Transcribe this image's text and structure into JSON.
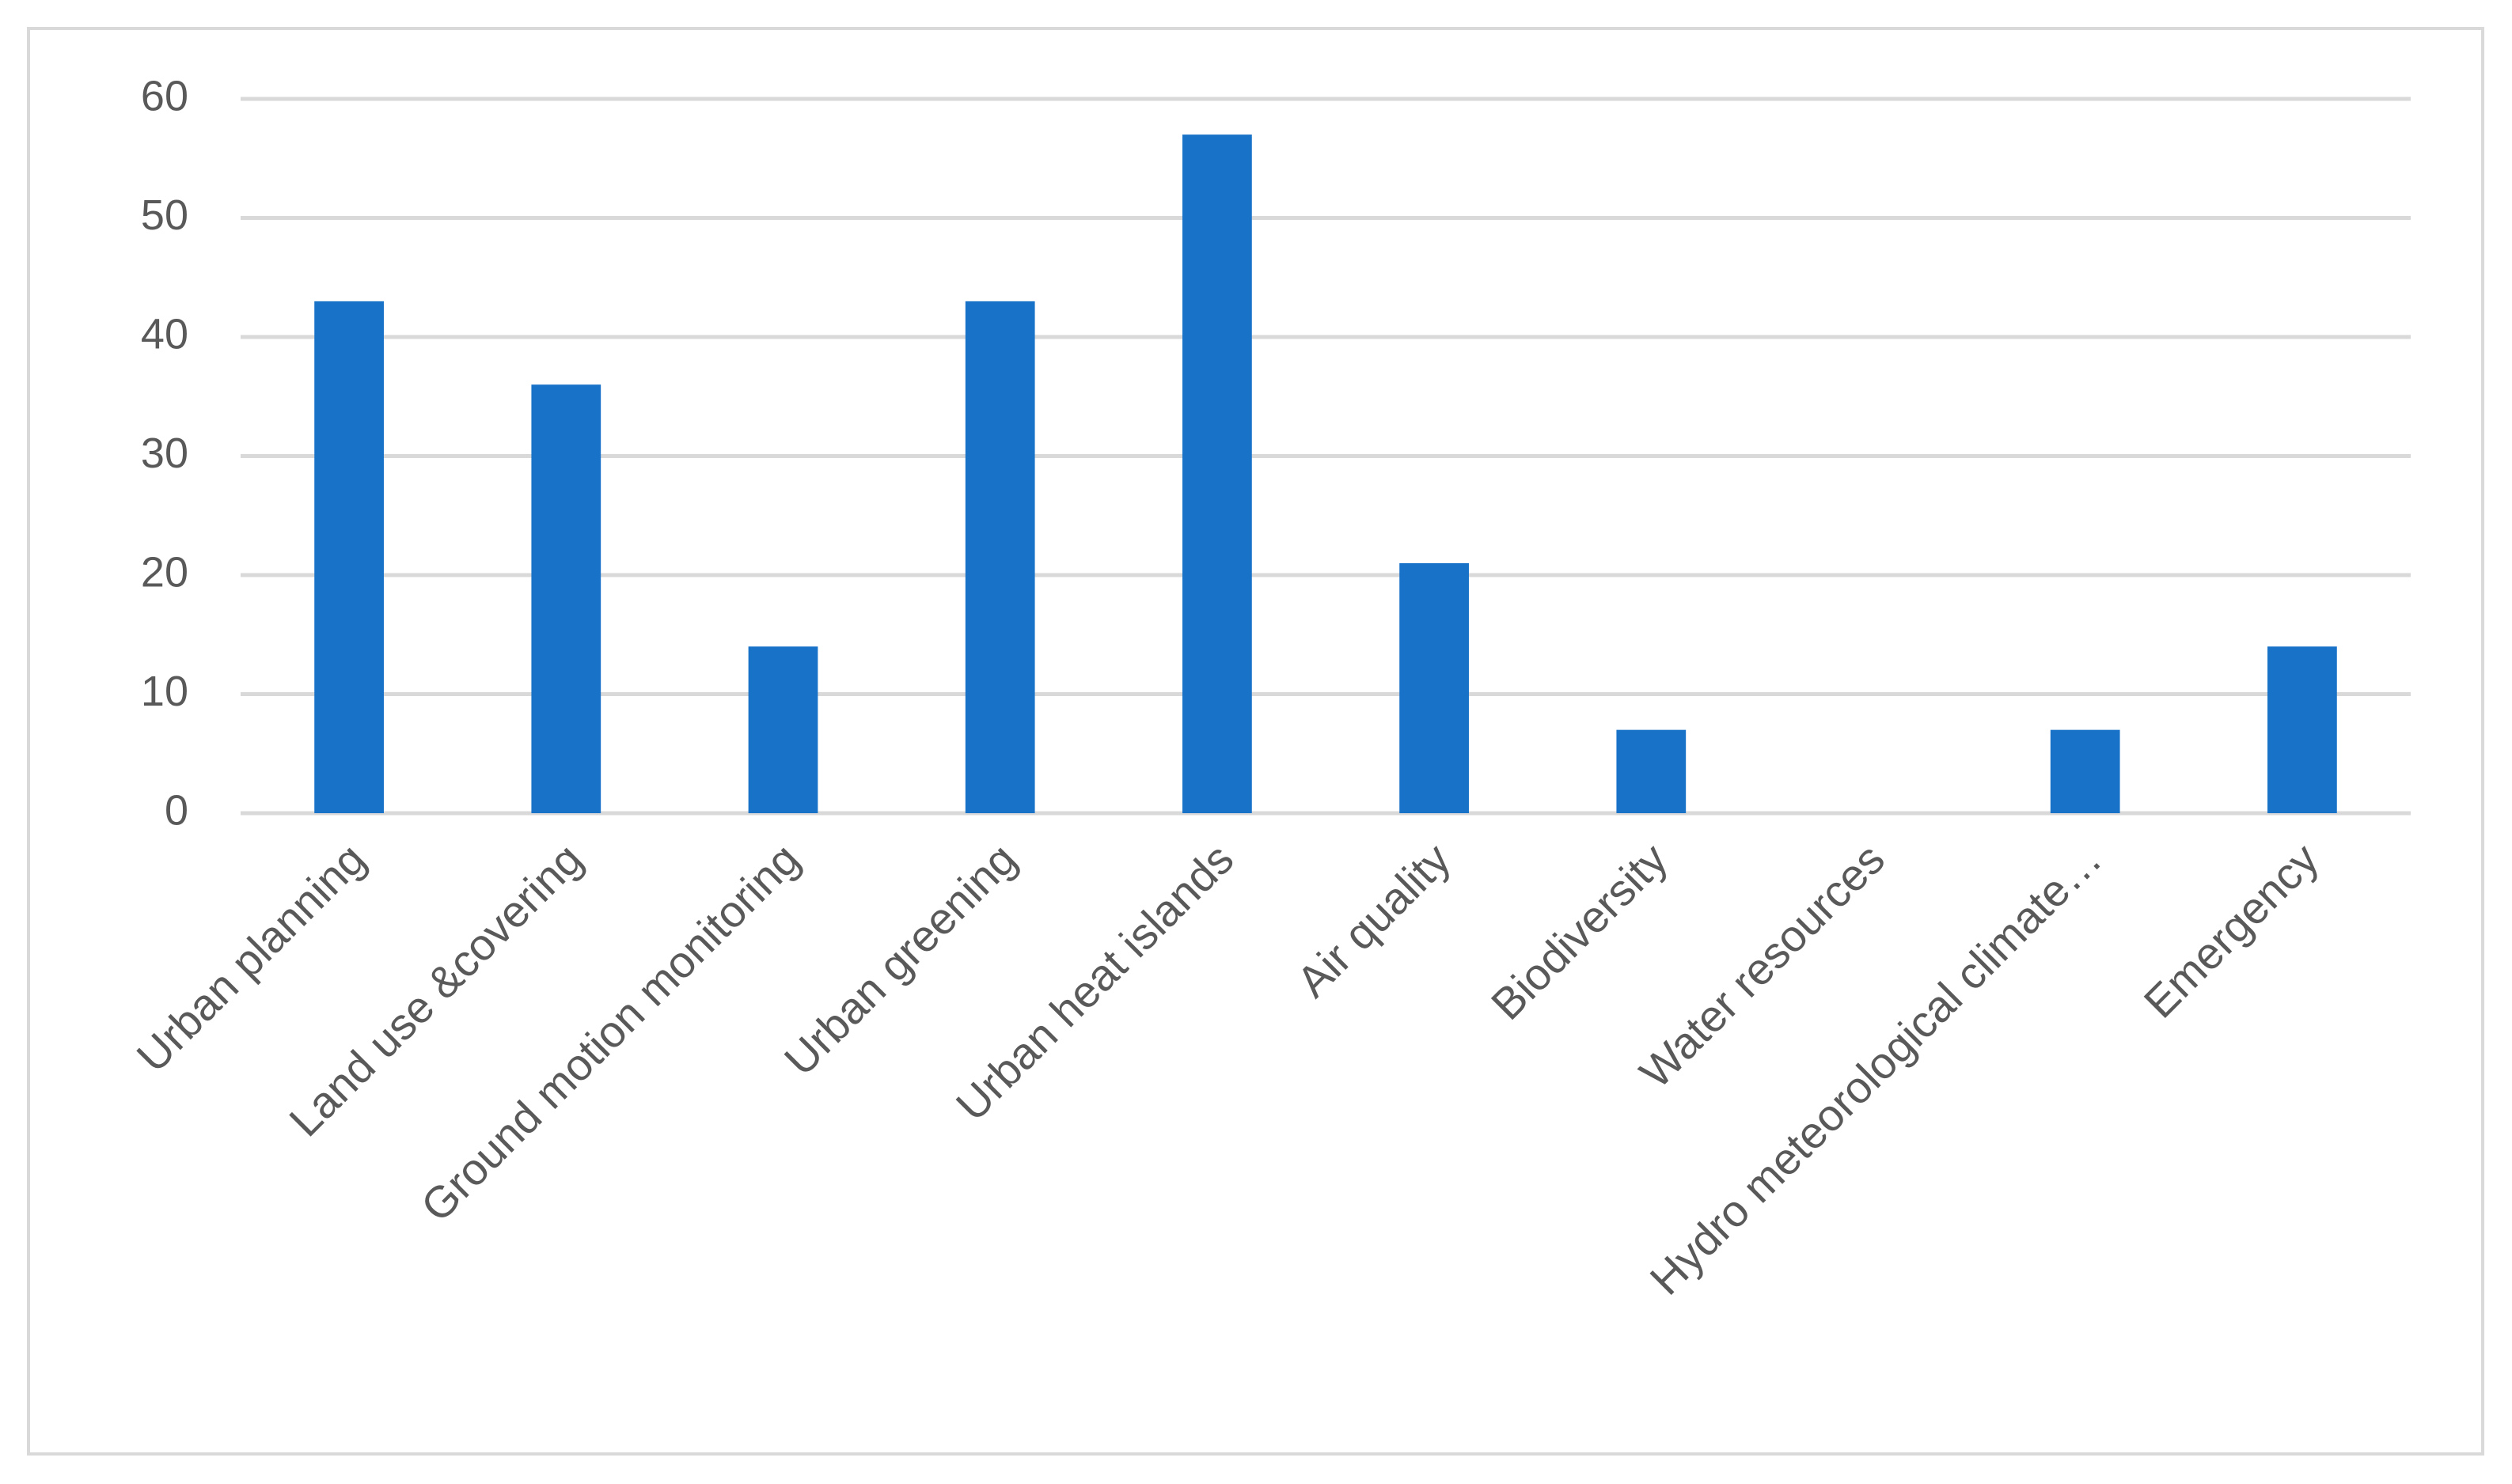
{
  "chart_data": {
    "type": "bar",
    "categories": [
      "Urban planning",
      "Land use &covering",
      "Ground motion monitoring",
      "Urban greening",
      "Urban heat islands",
      "Air quality",
      "Biodiversity",
      "Water resources",
      "Hydro meteorological climate…",
      "Emergency"
    ],
    "values": [
      43,
      36,
      14,
      43,
      57,
      21,
      7,
      0,
      7,
      14
    ],
    "color": "#1872c8",
    "ylim": [
      0,
      60
    ],
    "yticks": [
      0,
      10,
      20,
      30,
      40,
      50,
      60
    ],
    "grid": true
  }
}
